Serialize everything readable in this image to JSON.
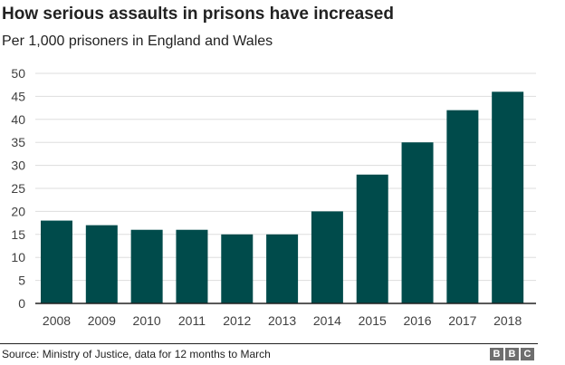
{
  "header": {
    "title": "How serious assaults in prisons have increased",
    "subtitle": "Per 1,000 prisoners in England and Wales"
  },
  "footer": {
    "source": "Source: Ministry of Justice, data for 12 months to March",
    "logo_letters": [
      "B",
      "B",
      "C"
    ]
  },
  "colors": {
    "bar": "#004b4b",
    "grid": "#dddddd",
    "axis": "#222222"
  },
  "chart_data": {
    "type": "bar",
    "title": "How serious assaults in prisons have increased",
    "subtitle": "Per 1,000 prisoners in England and Wales",
    "xlabel": "",
    "ylabel": "",
    "categories": [
      "2008",
      "2009",
      "2010",
      "2011",
      "2012",
      "2013",
      "2014",
      "2015",
      "2016",
      "2017",
      "2018"
    ],
    "values": [
      18,
      17,
      16,
      16,
      15,
      15,
      20,
      28,
      35,
      42,
      46
    ],
    "ylim": [
      0,
      50
    ],
    "yticks": [
      0,
      5,
      10,
      15,
      20,
      25,
      30,
      35,
      40,
      45,
      50
    ],
    "grid": true,
    "legend": "none"
  }
}
